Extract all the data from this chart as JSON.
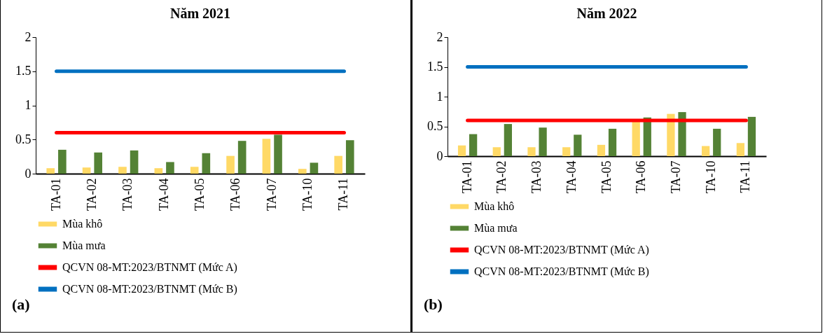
{
  "chart_data": [
    {
      "type": "bar",
      "title": "Năm 2021",
      "categories": [
        "TA-01",
        "TA-02",
        "TA-03",
        "TA-04",
        "TA-05",
        "TA-06",
        "TA-07",
        "TA-10",
        "TA-11"
      ],
      "series": [
        {
          "name": "Mùa khô",
          "color": "#ffd966",
          "values": [
            0.08,
            0.09,
            0.1,
            0.08,
            0.1,
            0.26,
            0.51,
            0.07,
            0.26
          ]
        },
        {
          "name": "Mùa mưa",
          "color": "#548235",
          "values": [
            0.35,
            0.31,
            0.34,
            0.17,
            0.3,
            0.48,
            0.57,
            0.16,
            0.49
          ]
        },
        {
          "name": "QCVN 08-MT:2023/BTNMT (Mức A)",
          "type": "line",
          "color": "#ff0000",
          "values": [
            0.6,
            0.6,
            0.6,
            0.6,
            0.6,
            0.6,
            0.6,
            0.6,
            0.6
          ]
        },
        {
          "name": "QCVN 08-MT:2023/BTNMT (Mức B)",
          "type": "line",
          "color": "#0070c0",
          "values": [
            1.5,
            1.5,
            1.5,
            1.5,
            1.5,
            1.5,
            1.5,
            1.5,
            1.5
          ]
        }
      ],
      "ylim": [
        0,
        2
      ],
      "yticks": [
        0,
        0.5,
        1,
        1.5,
        2
      ],
      "legend": "bottom",
      "marker": "none",
      "annotations": [
        "(a)"
      ]
    },
    {
      "type": "bar",
      "title": "Năm 2022",
      "categories": [
        "TA-01",
        "TA-02",
        "TA-03",
        "TA-04",
        "TA-05",
        "TA-06",
        "TA-07",
        "TA-10",
        "TA-11"
      ],
      "series": [
        {
          "name": "Mùa khô",
          "color": "#ffd966",
          "values": [
            0.18,
            0.15,
            0.15,
            0.15,
            0.19,
            0.59,
            0.71,
            0.17,
            0.22
          ]
        },
        {
          "name": "Mùa mưa",
          "color": "#548235",
          "values": [
            0.37,
            0.54,
            0.48,
            0.36,
            0.46,
            0.65,
            0.74,
            0.46,
            0.66
          ]
        },
        {
          "name": "QCVN 08-MT:2023/BTNMT (Mức A)",
          "type": "line",
          "color": "#ff0000",
          "values": [
            0.6,
            0.6,
            0.6,
            0.6,
            0.6,
            0.6,
            0.6,
            0.6,
            0.6
          ]
        },
        {
          "name": "QCVN 08-MT:2023/BTNMT (Mức B)",
          "type": "line",
          "color": "#0070c0",
          "values": [
            1.5,
            1.5,
            1.5,
            1.5,
            1.5,
            1.5,
            1.5,
            1.5,
            1.5
          ]
        }
      ],
      "ylim": [
        0,
        2
      ],
      "yticks": [
        0,
        0.5,
        1,
        1.5,
        2
      ],
      "legend": "bottom",
      "marker": "none",
      "annotations": [
        "(b)"
      ]
    }
  ]
}
